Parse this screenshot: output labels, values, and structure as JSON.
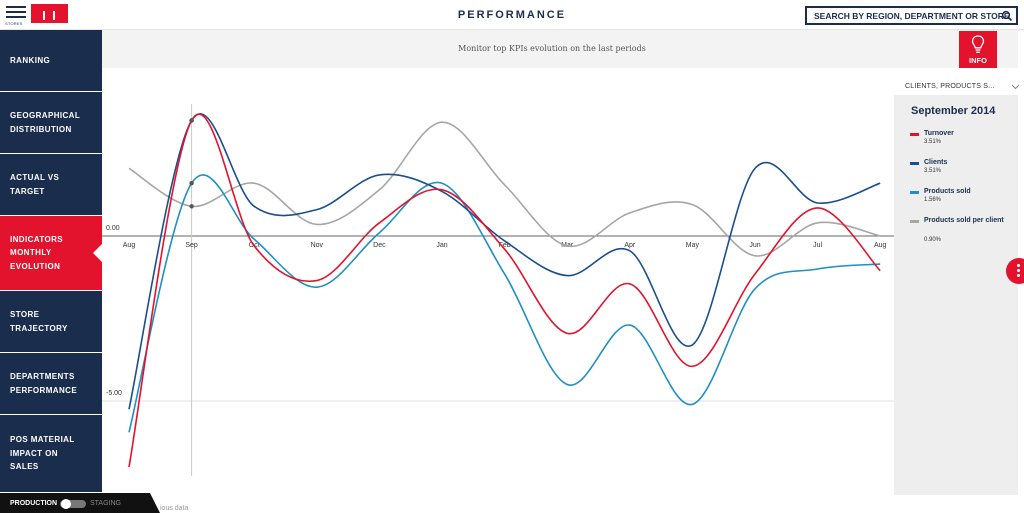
{
  "header": {
    "menu_caption": "STORES",
    "title": "PERFORMANCE",
    "search_placeholder": "SEARCH BY REGION, DEPARTMENT OR STORE"
  },
  "sidebar": {
    "items": [
      {
        "label": "RANKING",
        "active": false
      },
      {
        "label": "GEOGRAPHICAL\nDISTRIBUTION",
        "active": false
      },
      {
        "label": "ACTUAL VS\nTARGET",
        "active": false
      },
      {
        "label": "INDICATORS\nMONTHLY\nEVOLUTION",
        "active": true
      },
      {
        "label": "STORE\nTRAJECTORY",
        "active": false
      },
      {
        "label": "DEPARTMENTS\nPERFORMANCE",
        "active": false
      },
      {
        "label": "POS MATERIAL\nIMPACT ON\nSALES",
        "active": false
      }
    ],
    "env_production": "PRODUCTION",
    "env_staging": "STAGING"
  },
  "main": {
    "subtitle": "Monitor top KPIs evolution on the last periods",
    "info_label": "INFO",
    "footnote": "ious data"
  },
  "right_panel": {
    "dropdown_label": "CLIENTS, PRODUCTS S...",
    "period": "September 2014",
    "legend": [
      {
        "name": "Turnover",
        "value": "3.51%",
        "color": "#e3122d"
      },
      {
        "name": "Clients",
        "value": "3.51%",
        "color": "#1a4f8f"
      },
      {
        "name": "Products sold",
        "value": "1.56%",
        "color": "#1f8fc4"
      },
      {
        "name": "Products sold per client",
        "value": "0.90%",
        "color": "#a6a6a6"
      }
    ]
  },
  "colors": {
    "navy": "#1b2d4d",
    "accent_red": "#e3122d"
  },
  "chart_data": {
    "type": "line",
    "categories": [
      "Aug",
      "Sep",
      "Oct",
      "Nov",
      "Dec",
      "Jan",
      "Feb",
      "Mar",
      "Apr",
      "May",
      "Jun",
      "Jul",
      "Aug"
    ],
    "y_tick_labels": [
      "0.00",
      "-5.00"
    ],
    "y_ticks": [
      0,
      -5
    ],
    "ylim": [
      -7.2,
      4
    ],
    "highlighted_category": "Sep",
    "series": [
      {
        "name": "Turnover",
        "color": "#e3122d",
        "values": [
          -7.0,
          3.5,
          -0.3,
          -1.35,
          0.4,
          1.4,
          -0.4,
          -2.95,
          -1.45,
          -3.95,
          -1.15,
          0.85,
          -1.05
        ]
      },
      {
        "name": "Clients",
        "color": "#1a4f8f",
        "values": [
          -5.25,
          3.5,
          0.9,
          0.8,
          1.85,
          1.35,
          -0.15,
          -1.2,
          -0.45,
          -3.3,
          2.05,
          1.0,
          1.6
        ]
      },
      {
        "name": "Products sold",
        "color": "#1f8fc4",
        "values": [
          -5.95,
          1.6,
          -0.1,
          -1.55,
          0.1,
          1.6,
          -1.15,
          -4.5,
          -2.7,
          -5.1,
          -1.6,
          -1.0,
          -0.85
        ]
      },
      {
        "name": "Products sold per client",
        "color": "#a6a6a6",
        "values": [
          2.05,
          0.9,
          1.6,
          0.35,
          1.4,
          3.45,
          1.55,
          -0.3,
          0.7,
          0.95,
          -0.6,
          0.4,
          0.0
        ]
      }
    ]
  }
}
